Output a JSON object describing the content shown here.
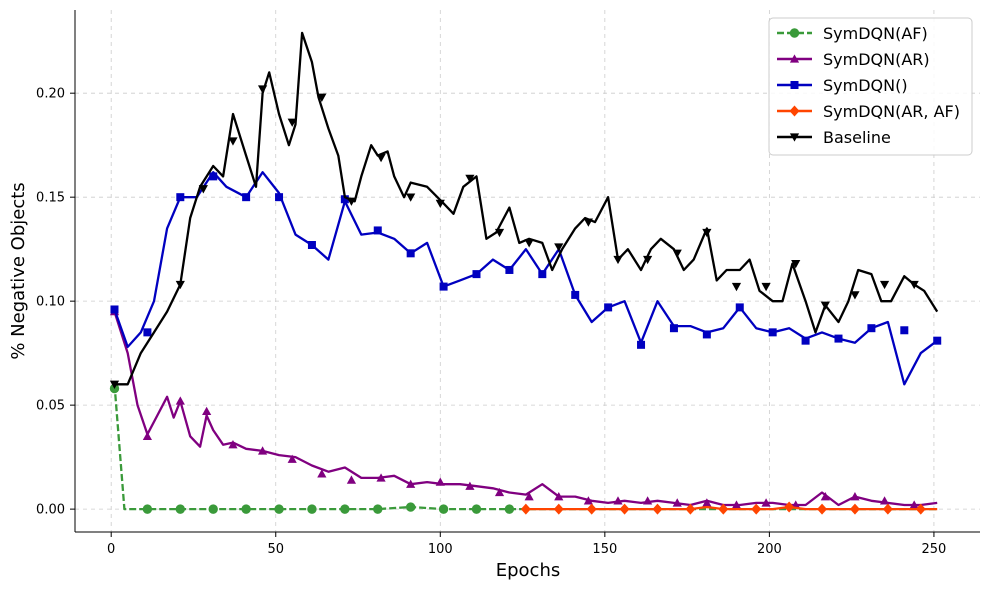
{
  "chart_data": {
    "type": "line",
    "xlabel": "Epochs",
    "ylabel": "% Negative Objects",
    "xlim": [
      -11,
      264
    ],
    "ylim": [
      -0.011,
      0.24
    ],
    "xticks": [
      0,
      50,
      100,
      150,
      200,
      250
    ],
    "yticks": [
      0.0,
      0.05,
      0.1,
      0.15,
      0.2
    ],
    "xtick_labels": [
      "0",
      "50",
      "100",
      "150",
      "200",
      "250"
    ],
    "ytick_labels": [
      "0.00",
      "0.05",
      "0.10",
      "0.15",
      "0.20"
    ],
    "grid": true,
    "legend_position": "top-right",
    "series": [
      {
        "name": "SymDQN(AF)",
        "color": "#3a9a3a",
        "style": "dashed",
        "marker": "circle",
        "x": [
          1,
          4,
          11,
          21,
          31,
          41,
          51,
          61,
          71,
          81,
          91,
          101,
          111,
          121,
          131,
          141,
          151,
          161,
          171,
          181,
          191,
          201,
          211,
          221,
          231,
          241,
          251
        ],
        "y": [
          0.06,
          0.0,
          0.0,
          0.0,
          0.0,
          0.0,
          0.0,
          0.0,
          0.0,
          0.0,
          0.001,
          0.0,
          0.0,
          0.0,
          0.0,
          0.0,
          0.0,
          0.0,
          0.0,
          0.0,
          0.0,
          0.0,
          0.0,
          0.0,
          0.0,
          0.0,
          0.0
        ],
        "marker_x": [
          1,
          11,
          21,
          31,
          41,
          51,
          61,
          71,
          81,
          91,
          101,
          111,
          121
        ],
        "marker_y": [
          0.058,
          0.0,
          0.0,
          0.0,
          0.0,
          0.0,
          0.0,
          0.0,
          0.0,
          0.001,
          0.0,
          0.0,
          0.0
        ]
      },
      {
        "name": "SymDQN(AR)",
        "color": "#800080",
        "style": "solid",
        "marker": "triangle-up",
        "x": [
          1,
          5,
          8,
          11,
          14,
          17,
          19,
          21,
          24,
          27,
          29,
          31,
          34,
          37,
          41,
          46,
          51,
          56,
          61,
          66,
          71,
          76,
          81,
          86,
          91,
          96,
          101,
          106,
          111,
          116,
          121,
          126,
          131,
          136,
          141,
          146,
          151,
          156,
          161,
          166,
          171,
          176,
          181,
          186,
          191,
          196,
          201,
          206,
          211,
          216,
          221,
          226,
          231,
          236,
          241,
          246,
          251
        ],
        "y": [
          0.095,
          0.075,
          0.05,
          0.036,
          0.045,
          0.054,
          0.044,
          0.052,
          0.035,
          0.03,
          0.045,
          0.038,
          0.031,
          0.032,
          0.029,
          0.028,
          0.026,
          0.025,
          0.021,
          0.018,
          0.02,
          0.015,
          0.015,
          0.016,
          0.012,
          0.013,
          0.012,
          0.012,
          0.011,
          0.01,
          0.008,
          0.007,
          0.012,
          0.006,
          0.006,
          0.004,
          0.003,
          0.004,
          0.003,
          0.004,
          0.003,
          0.002,
          0.004,
          0.002,
          0.002,
          0.003,
          0.003,
          0.002,
          0.002,
          0.008,
          0.002,
          0.006,
          0.004,
          0.003,
          0.002,
          0.002,
          0.003
        ],
        "marker_x": [
          1,
          11,
          21,
          29,
          37,
          46,
          55,
          64,
          73,
          82,
          91,
          100,
          109,
          118,
          127,
          136,
          145,
          154,
          163,
          172,
          181,
          190,
          199,
          208,
          217,
          226,
          235,
          244
        ],
        "marker_y": [
          0.095,
          0.035,
          0.052,
          0.047,
          0.031,
          0.028,
          0.024,
          0.017,
          0.014,
          0.015,
          0.012,
          0.013,
          0.011,
          0.008,
          0.006,
          0.006,
          0.004,
          0.004,
          0.004,
          0.003,
          0.003,
          0.002,
          0.003,
          0.002,
          0.006,
          0.006,
          0.004,
          0.002
        ]
      },
      {
        "name": "SymDQN()",
        "color": "#0000c0",
        "style": "solid",
        "marker": "square",
        "x": [
          1,
          5,
          9,
          13,
          17,
          21,
          26,
          31,
          35,
          41,
          46,
          51,
          56,
          61,
          66,
          71,
          76,
          81,
          86,
          91,
          96,
          101,
          106,
          111,
          116,
          121,
          126,
          131,
          136,
          141,
          146,
          151,
          156,
          161,
          166,
          171,
          176,
          181,
          186,
          191,
          196,
          201,
          206,
          211,
          216,
          221,
          226,
          231,
          236,
          241,
          246,
          251
        ],
        "y": [
          0.096,
          0.078,
          0.085,
          0.1,
          0.135,
          0.15,
          0.15,
          0.162,
          0.155,
          0.15,
          0.162,
          0.152,
          0.132,
          0.127,
          0.12,
          0.148,
          0.132,
          0.133,
          0.13,
          0.123,
          0.128,
          0.107,
          0.11,
          0.113,
          0.12,
          0.115,
          0.125,
          0.113,
          0.125,
          0.103,
          0.09,
          0.097,
          0.1,
          0.08,
          0.1,
          0.088,
          0.088,
          0.085,
          0.087,
          0.097,
          0.087,
          0.085,
          0.087,
          0.082,
          0.085,
          0.082,
          0.08,
          0.087,
          0.09,
          0.06,
          0.075,
          0.081
        ],
        "marker_x": [
          1,
          11,
          21,
          31,
          41,
          51,
          61,
          71,
          81,
          91,
          101,
          111,
          121,
          131,
          141,
          151,
          161,
          171,
          181,
          191,
          201,
          211,
          221,
          231,
          241,
          251
        ],
        "marker_y": [
          0.096,
          0.085,
          0.15,
          0.16,
          0.15,
          0.15,
          0.127,
          0.149,
          0.134,
          0.123,
          0.107,
          0.113,
          0.115,
          0.113,
          0.103,
          0.097,
          0.079,
          0.087,
          0.084,
          0.097,
          0.085,
          0.081,
          0.082,
          0.087,
          0.086,
          0.081
        ]
      },
      {
        "name": "SymDQN(AR, AF)",
        "color": "#ff4500",
        "style": "solid",
        "marker": "diamond",
        "x": [
          126,
          131,
          136,
          141,
          146,
          151,
          156,
          161,
          166,
          171,
          176,
          181,
          186,
          191,
          196,
          201,
          206,
          211,
          216,
          221,
          226,
          231,
          236,
          241,
          246,
          251
        ],
        "y": [
          0.0,
          0.0,
          0.0,
          0.0,
          0.0,
          0.0,
          0.0,
          0.0,
          0.0,
          0.0,
          0.0,
          0.001,
          0.0,
          0.0,
          0.0,
          0.0,
          0.001,
          0.0,
          0.0,
          0.0,
          0.0,
          0.0,
          0.0,
          0.0,
          0.0,
          0.0
        ],
        "marker_x": [
          126,
          136,
          146,
          156,
          166,
          176,
          186,
          196,
          206,
          216,
          226,
          236,
          246
        ],
        "marker_y": [
          0.0,
          0.0,
          0.0,
          0.0,
          0.0,
          0.0,
          0.0,
          0.0,
          0.001,
          0.0,
          0.0,
          0.0,
          0.0
        ]
      },
      {
        "name": "Baseline",
        "color": "#000000",
        "style": "solid",
        "marker": "triangle-down",
        "x": [
          1,
          5,
          9,
          13,
          17,
          21,
          24,
          27,
          31,
          34,
          37,
          41,
          44,
          46,
          48,
          51,
          54,
          56,
          58,
          61,
          63,
          66,
          69,
          71,
          74,
          76,
          79,
          81,
          84,
          86,
          89,
          91,
          96,
          101,
          104,
          107,
          111,
          114,
          117,
          121,
          124,
          127,
          131,
          134,
          137,
          141,
          144,
          147,
          151,
          154,
          157,
          161,
          164,
          167,
          171,
          174,
          177,
          181,
          184,
          187,
          191,
          194,
          197,
          201,
          204,
          207,
          211,
          214,
          217,
          221,
          224,
          227,
          231,
          234,
          237,
          241,
          244,
          247,
          251
        ],
        "y": [
          0.06,
          0.06,
          0.075,
          0.085,
          0.095,
          0.108,
          0.14,
          0.155,
          0.165,
          0.16,
          0.19,
          0.17,
          0.155,
          0.2,
          0.21,
          0.19,
          0.175,
          0.185,
          0.229,
          0.215,
          0.198,
          0.183,
          0.17,
          0.15,
          0.148,
          0.16,
          0.175,
          0.17,
          0.172,
          0.16,
          0.15,
          0.157,
          0.155,
          0.147,
          0.142,
          0.155,
          0.16,
          0.13,
          0.133,
          0.145,
          0.128,
          0.13,
          0.128,
          0.115,
          0.125,
          0.135,
          0.14,
          0.138,
          0.15,
          0.12,
          0.125,
          0.115,
          0.125,
          0.13,
          0.125,
          0.115,
          0.12,
          0.135,
          0.11,
          0.115,
          0.115,
          0.12,
          0.105,
          0.1,
          0.1,
          0.118,
          0.1,
          0.085,
          0.098,
          0.09,
          0.1,
          0.115,
          0.113,
          0.1,
          0.1,
          0.112,
          0.108,
          0.105,
          0.095
        ],
        "marker_x": [
          1,
          21,
          28,
          37,
          46,
          55,
          64,
          73,
          82,
          91,
          100,
          109,
          118,
          127,
          136,
          145,
          154,
          163,
          172,
          181,
          190,
          199,
          208,
          217,
          226,
          235,
          244
        ],
        "marker_y": [
          0.06,
          0.108,
          0.154,
          0.177,
          0.202,
          0.186,
          0.198,
          0.148,
          0.169,
          0.15,
          0.147,
          0.159,
          0.133,
          0.128,
          0.126,
          0.138,
          0.12,
          0.12,
          0.123,
          0.133,
          0.107,
          0.107,
          0.118,
          0.098,
          0.103,
          0.108,
          0.108
        ]
      }
    ]
  }
}
